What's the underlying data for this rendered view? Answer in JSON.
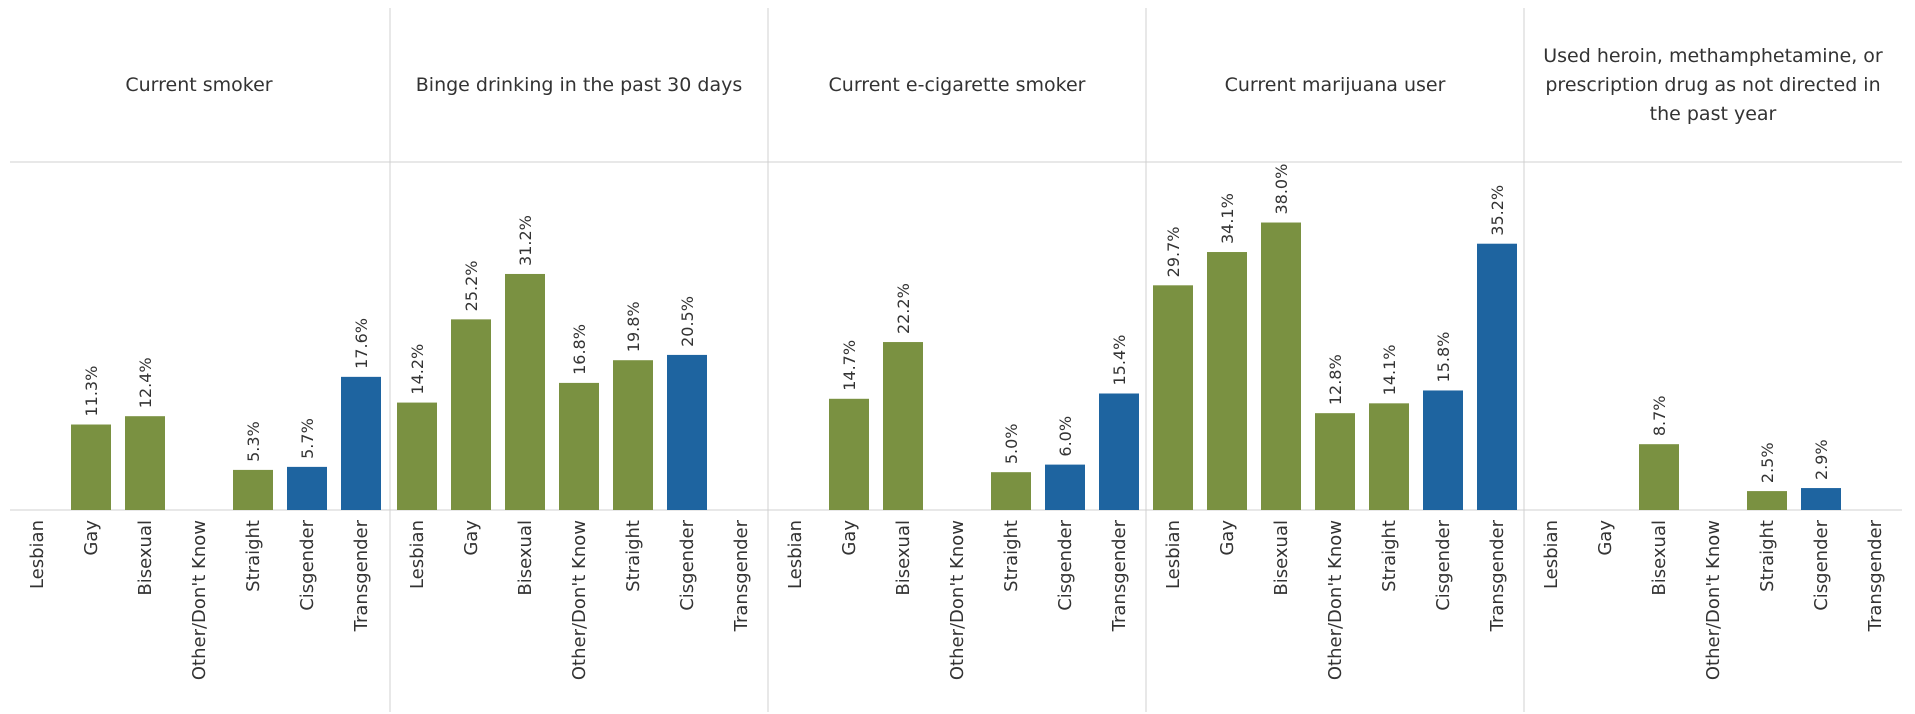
{
  "chart_data": {
    "type": "bar",
    "categories": [
      "Lesbian",
      "Gay",
      "Bisexual",
      "Other/Don't Know",
      "Straight",
      "Cisgender",
      "Transgender"
    ],
    "ylim": [
      0,
      46
    ],
    "value_suffix": "%",
    "colors": {
      "orientation": "#7a9141",
      "gender": "#1e64a0",
      "grid": "#d0d0d0",
      "text": "#333333"
    },
    "category_groups": [
      "orientation",
      "orientation",
      "orientation",
      "orientation",
      "orientation",
      "gender",
      "gender"
    ],
    "panels": [
      {
        "title_lines": [
          "Current smoker"
        ],
        "values": [
          null,
          11.3,
          12.4,
          null,
          5.3,
          5.7,
          17.6
        ]
      },
      {
        "title_lines": [
          "Binge drinking in the past 30 days"
        ],
        "values": [
          14.2,
          25.2,
          31.2,
          16.8,
          19.8,
          20.5,
          null
        ]
      },
      {
        "title_lines": [
          "Current e-cigarette smoker"
        ],
        "values": [
          null,
          14.7,
          22.2,
          null,
          5.0,
          6.0,
          15.4
        ]
      },
      {
        "title_lines": [
          "Current marijuana user"
        ],
        "values": [
          29.7,
          34.1,
          38.0,
          12.8,
          14.1,
          15.8,
          35.2
        ]
      },
      {
        "title_lines": [
          "Used heroin, methamphetamine, or",
          "prescription drug as not directed in",
          "the past year"
        ],
        "values": [
          null,
          null,
          8.7,
          null,
          2.5,
          2.9,
          null
        ]
      }
    ]
  }
}
